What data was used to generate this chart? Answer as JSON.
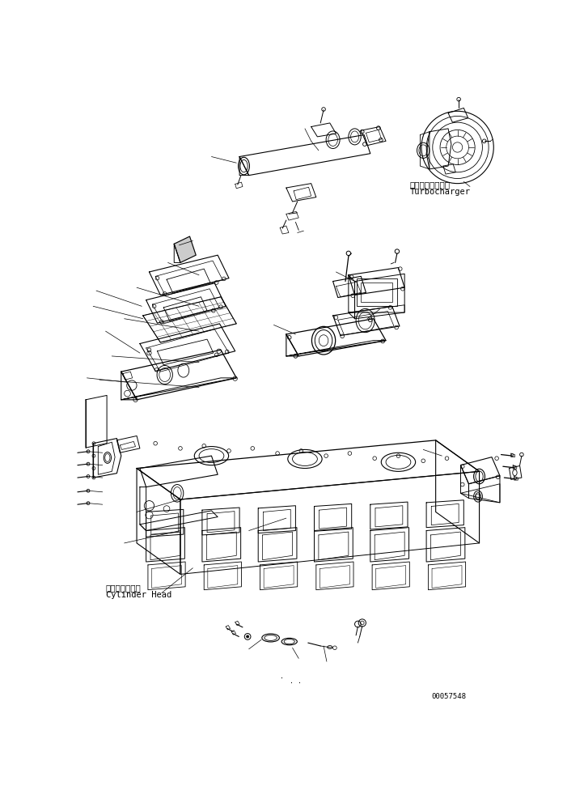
{
  "background_color": "#ffffff",
  "line_color": "#000000",
  "label_turbocharger_jp": "ターボチャージャ",
  "label_turbocharger_en": "Turbocharger",
  "label_cylinder_jp": "シリンダヘッド",
  "label_cylinder_en": "Cylinder Head",
  "serial_number": "00057548",
  "fig_width": 7.22,
  "fig_height": 9.71,
  "dpi": 100
}
